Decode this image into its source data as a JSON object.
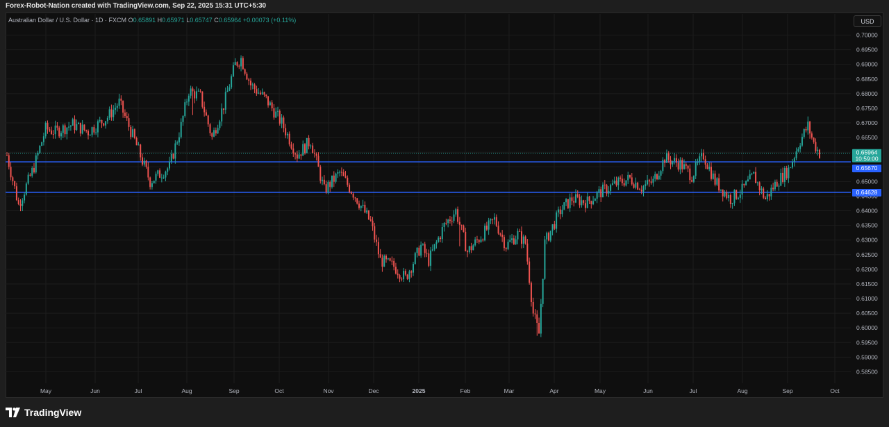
{
  "header": {
    "attribution": "Forex-Robot-Nation created with TradingView.com, Sep 22, 2025 15:31 UTC+5:30"
  },
  "legend": {
    "symbol": "Australian Dollar / U.S. Dollar · 1D · FXCM",
    "open_label": "O",
    "open": "0.65891",
    "high_label": "H",
    "high": "0.65971",
    "low_label": "L",
    "low": "0.65747",
    "close_label": "C",
    "close": "0.65964",
    "change": "+0.00073 (+0.11%)"
  },
  "currency_button": "USD",
  "brand": {
    "name": "TradingView"
  },
  "colors": {
    "up": "#26a69a",
    "down": "#ef5350",
    "line": "#2962ff",
    "background": "#0f0f0f",
    "grid": "#1c1c1c"
  },
  "chart_data": {
    "type": "candlestick",
    "y_range": [
      0.5825,
      0.7025
    ],
    "y_ticks": [
      "0.70000",
      "0.69500",
      "0.69000",
      "0.68500",
      "0.68000",
      "0.67500",
      "0.67000",
      "0.66500",
      "0.66000",
      "0.65500",
      "0.65000",
      "0.64500",
      "0.64000",
      "0.63500",
      "0.63000",
      "0.62500",
      "0.62000",
      "0.61500",
      "0.61000",
      "0.60500",
      "0.60000",
      "0.59500",
      "0.59000",
      "0.58500"
    ],
    "x_ticks": [
      "May",
      "Jun",
      "Jul",
      "Aug",
      "Sep",
      "Oct",
      "Nov",
      "Dec",
      "2025",
      "Feb",
      "Mar",
      "Apr",
      "May",
      "Jun",
      "Jul",
      "Aug",
      "Sep",
      "Oct"
    ],
    "price_label": {
      "price": "0.65964",
      "countdown": "10:59:00"
    },
    "horizontal_lines": [
      {
        "price": 0.6567,
        "label": "0.65670"
      },
      {
        "price": 0.64628,
        "label": "0.64628"
      }
    ],
    "dotted_line": 0.65964,
    "path": [
      [
        0,
        0.659
      ],
      [
        6,
        0.642
      ],
      [
        14,
        0.655
      ],
      [
        20,
        0.668
      ],
      [
        25,
        0.667
      ],
      [
        34,
        0.6695
      ],
      [
        42,
        0.667
      ],
      [
        52,
        0.672
      ],
      [
        58,
        0.677
      ],
      [
        66,
        0.664
      ],
      [
        74,
        0.65
      ],
      [
        84,
        0.655
      ],
      [
        90,
        0.669
      ],
      [
        94,
        0.681
      ],
      [
        100,
        0.679
      ],
      [
        106,
        0.665
      ],
      [
        112,
        0.676
      ],
      [
        118,
        0.69
      ],
      [
        121,
        0.692
      ],
      [
        126,
        0.683
      ],
      [
        134,
        0.678
      ],
      [
        142,
        0.67
      ],
      [
        150,
        0.659
      ],
      [
        157,
        0.664
      ],
      [
        164,
        0.647
      ],
      [
        172,
        0.653
      ],
      [
        180,
        0.645
      ],
      [
        188,
        0.636
      ],
      [
        193,
        0.623
      ],
      [
        200,
        0.621
      ],
      [
        206,
        0.617
      ],
      [
        214,
        0.628
      ],
      [
        218,
        0.623
      ],
      [
        226,
        0.635
      ],
      [
        232,
        0.64
      ],
      [
        238,
        0.626
      ],
      [
        246,
        0.632
      ],
      [
        252,
        0.637
      ],
      [
        258,
        0.628
      ],
      [
        264,
        0.632
      ],
      [
        268,
        0.629
      ],
      [
        272,
        0.605
      ],
      [
        275,
        0.598
      ],
      [
        278,
        0.629
      ],
      [
        286,
        0.64
      ],
      [
        292,
        0.644
      ],
      [
        300,
        0.643
      ],
      [
        306,
        0.646
      ],
      [
        314,
        0.649
      ],
      [
        322,
        0.651
      ],
      [
        328,
        0.648
      ],
      [
        334,
        0.65
      ],
      [
        340,
        0.658
      ],
      [
        348,
        0.656
      ],
      [
        354,
        0.652
      ],
      [
        360,
        0.659
      ],
      [
        366,
        0.65
      ],
      [
        374,
        0.644
      ],
      [
        380,
        0.647
      ],
      [
        386,
        0.652
      ],
      [
        392,
        0.644
      ],
      [
        398,
        0.65
      ],
      [
        404,
        0.654
      ],
      [
        410,
        0.664
      ],
      [
        414,
        0.669
      ],
      [
        417,
        0.663
      ],
      [
        420,
        0.6596
      ]
    ]
  }
}
